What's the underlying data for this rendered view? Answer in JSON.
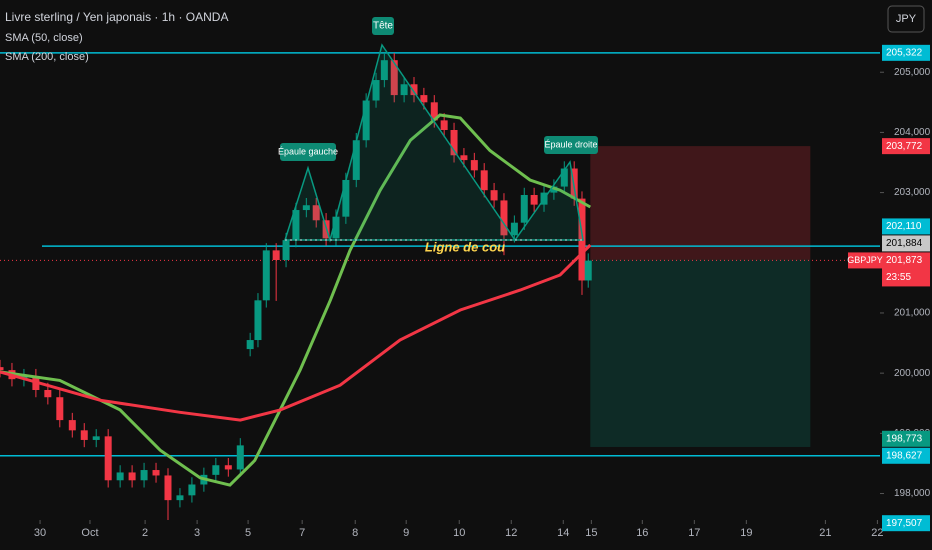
{
  "chart_data": {
    "type": "candlestick",
    "title": "Livre sterling / Yen japonais · 1h · OANDA",
    "indicators": [
      {
        "name": "SMA (50, close)",
        "color": "#6fbf4f",
        "x": [
          -0.77,
          0.38,
          1.54,
          2.31,
          3.08,
          3.65,
          4.13,
          4.52,
          5.0,
          5.58,
          5.96,
          6.54,
          7.12,
          7.69,
          8.08,
          8.65,
          9.42,
          10.0,
          10.58
        ],
        "values": [
          200.02,
          199.88,
          199.39,
          198.72,
          198.26,
          198.14,
          198.55,
          199.22,
          200.05,
          201.21,
          202.04,
          203.04,
          203.87,
          204.29,
          204.24,
          203.7,
          203.21,
          203.04,
          202.76
        ]
      },
      {
        "name": "SMA (200, close)",
        "color": "#f23645",
        "x": [
          -0.77,
          1.15,
          2.69,
          3.85,
          4.62,
          5.77,
          6.92,
          8.08,
          9.23,
          10.0,
          10.58
        ],
        "values": [
          200.02,
          199.55,
          199.35,
          199.22,
          199.39,
          199.8,
          200.55,
          201.05,
          201.38,
          201.63,
          202.13
        ]
      }
    ],
    "x": [
      -0.77,
      -0.54,
      -0.31,
      -0.08,
      0.15,
      0.38,
      0.62,
      0.85,
      1.08,
      1.31,
      1.54,
      1.77,
      2.0,
      2.23,
      2.46,
      2.69,
      2.92,
      3.15,
      3.38,
      3.62,
      3.85,
      4.04,
      4.19,
      4.35,
      4.54,
      4.73,
      4.92,
      5.12,
      5.31,
      5.5,
      5.69,
      5.88,
      6.08,
      6.27,
      6.46,
      6.62,
      6.81,
      7.0,
      7.19,
      7.38,
      7.58,
      7.77,
      7.96,
      8.15,
      8.35,
      8.54,
      8.73,
      8.92,
      9.12,
      9.31,
      9.5,
      9.69,
      9.88,
      10.08,
      10.27,
      10.42,
      10.54
    ],
    "open": [
      200.1,
      200.05,
      199.9,
      199.95,
      199.72,
      199.6,
      199.22,
      199.05,
      198.89,
      198.95,
      198.22,
      198.35,
      198.22,
      198.39,
      198.3,
      197.89,
      197.97,
      198.15,
      198.31,
      198.47,
      198.4,
      200.4,
      200.55,
      201.21,
      202.04,
      201.88,
      202.21,
      202.71,
      202.79,
      202.54,
      202.24,
      202.6,
      203.21,
      203.87,
      204.53,
      204.87,
      205.2,
      204.62,
      204.8,
      204.62,
      204.5,
      204.2,
      204.04,
      203.62,
      203.54,
      203.37,
      203.04,
      202.87,
      202.29,
      202.5,
      202.96,
      202.8,
      203.0,
      203.1,
      203.4,
      202.9,
      201.54
    ],
    "high": [
      200.22,
      200.17,
      200.07,
      200.07,
      199.84,
      199.72,
      199.34,
      199.17,
      199.07,
      199.07,
      198.47,
      198.47,
      198.51,
      198.51,
      198.42,
      198.09,
      198.27,
      198.43,
      198.59,
      198.59,
      198.92,
      200.67,
      201.33,
      202.16,
      202.16,
      202.33,
      202.83,
      202.91,
      202.91,
      202.66,
      202.72,
      203.33,
      203.99,
      204.65,
      204.99,
      205.32,
      205.32,
      204.92,
      204.92,
      204.74,
      204.62,
      204.32,
      204.16,
      203.74,
      203.66,
      203.49,
      203.16,
      202.99,
      202.62,
      203.08,
      203.08,
      203.12,
      203.22,
      203.52,
      203.52,
      203.02,
      201.99
    ],
    "low": [
      199.93,
      199.78,
      199.78,
      199.6,
      199.48,
      199.1,
      198.93,
      198.77,
      198.77,
      198.1,
      198.1,
      198.1,
      198.1,
      198.18,
      197.51,
      197.77,
      197.85,
      198.03,
      198.19,
      198.28,
      198.28,
      200.28,
      200.43,
      201.09,
      201.2,
      201.76,
      202.09,
      202.59,
      202.42,
      202.12,
      202.12,
      202.48,
      203.09,
      203.75,
      204.41,
      204.75,
      204.5,
      204.5,
      204.5,
      204.38,
      204.08,
      203.92,
      203.5,
      203.42,
      203.25,
      202.92,
      202.75,
      201.96,
      202.17,
      202.38,
      202.68,
      202.68,
      202.88,
      202.98,
      202.78,
      201.3,
      201.42
    ],
    "close": [
      200.05,
      199.9,
      199.95,
      199.72,
      199.6,
      199.22,
      199.05,
      198.89,
      198.95,
      198.22,
      198.35,
      198.22,
      198.39,
      198.3,
      197.89,
      197.97,
      198.15,
      198.31,
      198.47,
      198.4,
      198.8,
      200.55,
      201.21,
      202.04,
      201.88,
      202.21,
      202.71,
      202.79,
      202.54,
      202.24,
      202.6,
      203.21,
      203.87,
      204.53,
      204.87,
      205.2,
      204.62,
      204.8,
      204.62,
      204.5,
      204.2,
      204.04,
      203.62,
      203.54,
      203.37,
      203.04,
      202.87,
      202.29,
      202.5,
      202.96,
      202.8,
      203.0,
      203.1,
      203.4,
      202.9,
      201.54,
      201.87
    ],
    "up_color": "#089981",
    "down_color": "#f23645",
    "xlim": [
      -0.77,
      16.15
    ],
    "ylim": [
      197.56,
      206.2
    ],
    "xticks": [
      {
        "value": 0,
        "label": "30"
      },
      {
        "value": 0.96,
        "label": "Oct"
      },
      {
        "value": 2.02,
        "label": "2"
      },
      {
        "value": 3.02,
        "label": "3"
      },
      {
        "value": 4.0,
        "label": "5"
      },
      {
        "value": 5.04,
        "label": "7"
      },
      {
        "value": 6.06,
        "label": "8"
      },
      {
        "value": 7.04,
        "label": "9"
      },
      {
        "value": 8.06,
        "label": "10"
      },
      {
        "value": 9.06,
        "label": "12"
      },
      {
        "value": 10.06,
        "label": "14"
      },
      {
        "value": 10.6,
        "label": "15"
      },
      {
        "value": 11.58,
        "label": "16"
      },
      {
        "value": 12.58,
        "label": "17"
      },
      {
        "value": 13.58,
        "label": "19"
      },
      {
        "value": 15.1,
        "label": "21"
      },
      {
        "value": 16.1,
        "label": "22"
      }
    ],
    "yticks": [
      {
        "value": 198,
        "label": "198,000"
      },
      {
        "value": 199,
        "label": "199,000"
      },
      {
        "value": 200,
        "label": "200,000"
      },
      {
        "value": 201,
        "label": "201,000"
      },
      {
        "value": 203,
        "label": "203,000"
      },
      {
        "value": 204,
        "label": "204,000"
      },
      {
        "value": 205,
        "label": "205,000"
      }
    ],
    "hlines": [
      {
        "value": 205.322,
        "color": "#00bcd4"
      },
      {
        "value": 202.11,
        "color": "#00bcd4"
      },
      {
        "value": 198.627,
        "color": "#00bcd4"
      }
    ],
    "position": {
      "x": [
        10.58,
        14.81
      ],
      "stop": 203.772,
      "entry": 201.884,
      "target": 198.773
    },
    "price_labels": [
      {
        "value": 205.322,
        "label": "205,322",
        "color": "#00bcd4"
      },
      {
        "value": 203.772,
        "label": "203,772",
        "color": "#f23645"
      },
      {
        "value": 202.11,
        "label": "202,110",
        "color": "#00bcd4"
      },
      {
        "value": 201.884,
        "label": "201,884",
        "color": "#c8c8c8"
      },
      {
        "value": 198.773,
        "label": "198,773",
        "color": "#089981"
      },
      {
        "value": 198.627,
        "label": "198,627",
        "color": "#00bcd4"
      },
      {
        "value": 197.507,
        "label": "197,507",
        "color": "#00bcd4"
      }
    ],
    "last_price": {
      "value": 201.873,
      "label": "201,873",
      "symbol": "GBPJPY",
      "countdown": "23:55",
      "color": "#f23645"
    },
    "annotations": {
      "head": "Tête",
      "left_shoulder": "Épaule gauche",
      "right_shoulder": "Épaule droite",
      "neckline": "Ligne de cou"
    },
    "currency": "JPY"
  }
}
